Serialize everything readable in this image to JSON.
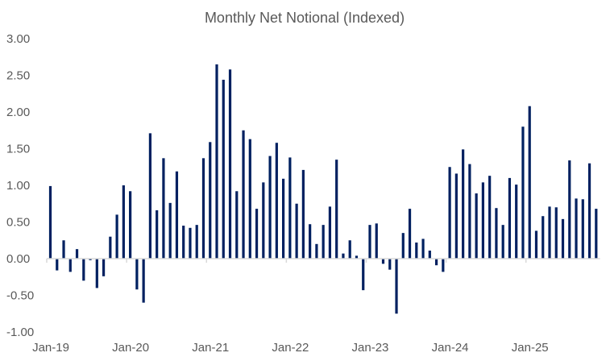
{
  "chart_data": {
    "type": "bar",
    "title": "Monthly Net Notional (Indexed)",
    "xlabel": "",
    "ylabel": "",
    "ylim": [
      -1.0,
      3.0
    ],
    "yticks": [
      "3.00",
      "2.50",
      "2.00",
      "1.50",
      "1.00",
      "0.50",
      "0.00",
      "-0.50",
      "-1.00"
    ],
    "ytick_values": [
      3.0,
      2.5,
      2.0,
      1.5,
      1.0,
      0.5,
      0.0,
      -0.5,
      -1.0
    ],
    "xticks": [
      "Jan-19",
      "Jan-20",
      "Jan-21",
      "Jan-22",
      "Jan-23",
      "Jan-24",
      "Jan-25"
    ],
    "grid": false,
    "bar_color": "#002060",
    "axis_color": "#d9d9d9",
    "start_month": "Jan-19",
    "categories": [
      "Jan-19",
      "Feb-19",
      "Mar-19",
      "Apr-19",
      "May-19",
      "Jun-19",
      "Jul-19",
      "Aug-19",
      "Sep-19",
      "Oct-19",
      "Nov-19",
      "Dec-19",
      "Jan-20",
      "Feb-20",
      "Mar-20",
      "Apr-20",
      "May-20",
      "Jun-20",
      "Jul-20",
      "Aug-20",
      "Sep-20",
      "Oct-20",
      "Nov-20",
      "Dec-20",
      "Jan-21",
      "Feb-21",
      "Mar-21",
      "Apr-21",
      "May-21",
      "Jun-21",
      "Jul-21",
      "Aug-21",
      "Sep-21",
      "Oct-21",
      "Nov-21",
      "Dec-21",
      "Jan-22",
      "Feb-22",
      "Mar-22",
      "Apr-22",
      "May-22",
      "Jun-22",
      "Jul-22",
      "Aug-22",
      "Sep-22",
      "Oct-22",
      "Nov-22",
      "Dec-22",
      "Jan-23",
      "Feb-23",
      "Mar-23",
      "Apr-23",
      "May-23",
      "Jun-23",
      "Jul-23",
      "Aug-23",
      "Sep-23",
      "Oct-23",
      "Nov-23",
      "Dec-23",
      "Jan-24",
      "Feb-24",
      "Mar-24",
      "Apr-24",
      "May-24",
      "Jun-24",
      "Jul-24",
      "Aug-24",
      "Sep-24",
      "Oct-24",
      "Nov-24",
      "Dec-24",
      "Jan-25",
      "Feb-25",
      "Mar-25",
      "Apr-25",
      "May-25",
      "Jun-25",
      "Jul-25",
      "Aug-25",
      "Sep-25",
      "Oct-25",
      "Nov-25"
    ],
    "values": [
      0.99,
      -0.16,
      0.25,
      -0.18,
      0.13,
      -0.3,
      -0.02,
      -0.4,
      -0.24,
      0.3,
      0.6,
      1.0,
      0.92,
      -0.42,
      -0.6,
      1.71,
      0.66,
      1.37,
      0.76,
      1.19,
      0.45,
      0.42,
      0.46,
      1.37,
      1.59,
      2.65,
      2.44,
      2.58,
      0.92,
      1.75,
      1.63,
      0.68,
      1.04,
      1.4,
      1.58,
      1.09,
      1.38,
      0.75,
      1.21,
      0.47,
      0.2,
      0.46,
      0.71,
      1.35,
      0.07,
      0.25,
      0.04,
      -0.43,
      0.46,
      0.48,
      -0.07,
      -0.15,
      -0.75,
      0.35,
      0.68,
      0.22,
      0.27,
      0.11,
      -0.09,
      -0.18,
      1.25,
      1.16,
      1.49,
      1.29,
      0.89,
      1.04,
      1.13,
      0.69,
      0.46,
      1.1,
      1.01,
      1.8,
      2.08,
      0.38,
      0.58,
      0.71,
      0.7,
      0.54,
      1.34,
      0.82,
      0.81,
      1.3,
      0.68
    ]
  }
}
